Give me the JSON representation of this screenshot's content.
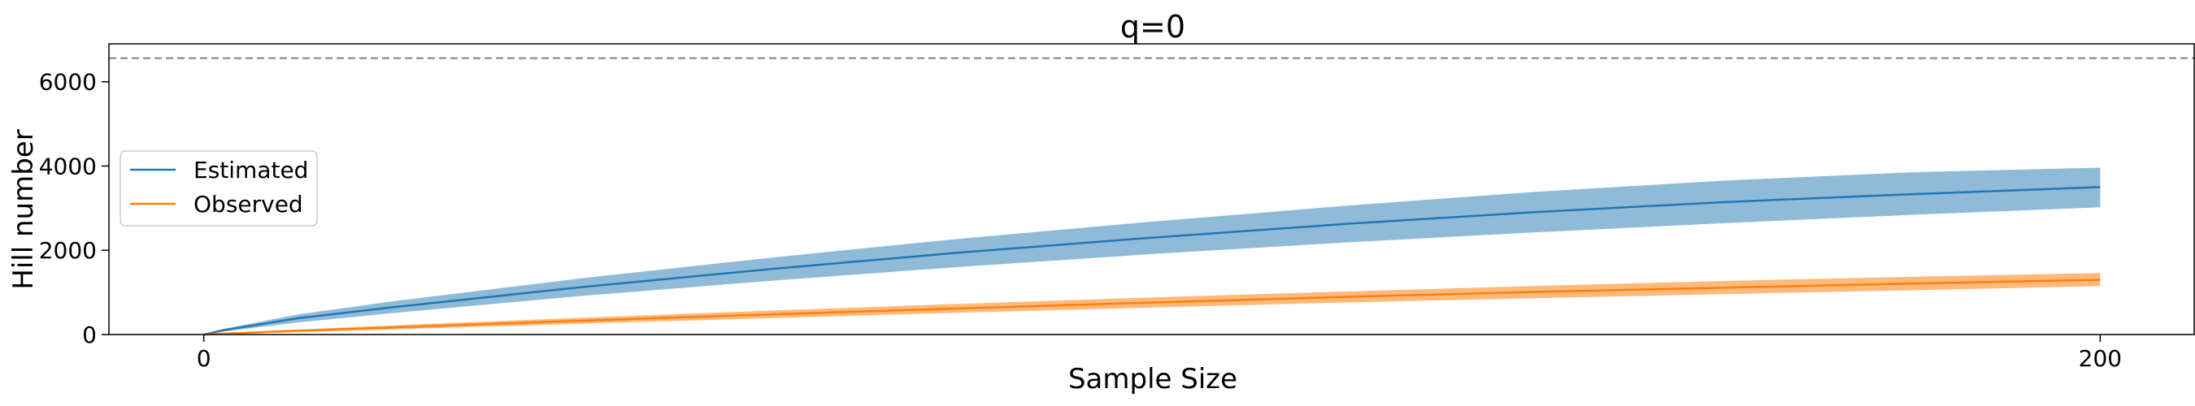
{
  "chart_data": {
    "type": "line",
    "title": "q=0",
    "xlabel": "Sample Size",
    "ylabel": "Hill number",
    "xlim": [
      -10,
      210
    ],
    "ylim": [
      0,
      6900
    ],
    "xticks": [
      0,
      200
    ],
    "yticks": [
      0,
      2000,
      4000,
      6000
    ],
    "grid": false,
    "legend_position": "center-left",
    "reference_line": {
      "y": 6560,
      "style": "dashed",
      "color": "#808080"
    },
    "series": [
      {
        "name": "Estimated",
        "color": "#1f77b4",
        "band_color": "#1f77b4",
        "x": [
          0,
          2,
          10,
          20,
          40,
          60,
          80,
          100,
          120,
          140,
          160,
          180,
          200
        ],
        "y": [
          0,
          100,
          390,
          650,
          1130,
          1560,
          1950,
          2300,
          2620,
          2900,
          3140,
          3330,
          3500
        ],
        "lower": [
          0,
          70,
          290,
          510,
          920,
          1280,
          1610,
          1910,
          2180,
          2420,
          2640,
          2840,
          3020
        ],
        "upper": [
          0,
          130,
          480,
          790,
          1340,
          1830,
          2280,
          2680,
          3050,
          3380,
          3650,
          3850,
          3960
        ]
      },
      {
        "name": "Observed",
        "color": "#ff7f0e",
        "band_color": "#ff7f0e",
        "x": [
          0,
          2,
          10,
          20,
          40,
          60,
          80,
          100,
          120,
          140,
          160,
          180,
          200
        ],
        "y": [
          0,
          20,
          90,
          170,
          330,
          480,
          620,
          760,
          890,
          1010,
          1110,
          1210,
          1300
        ],
        "lower": [
          0,
          10,
          60,
          120,
          260,
          390,
          520,
          640,
          760,
          860,
          960,
          1050,
          1150
        ],
        "upper": [
          0,
          30,
          120,
          220,
          400,
          570,
          730,
          880,
          1020,
          1150,
          1270,
          1370,
          1460
        ]
      }
    ]
  }
}
